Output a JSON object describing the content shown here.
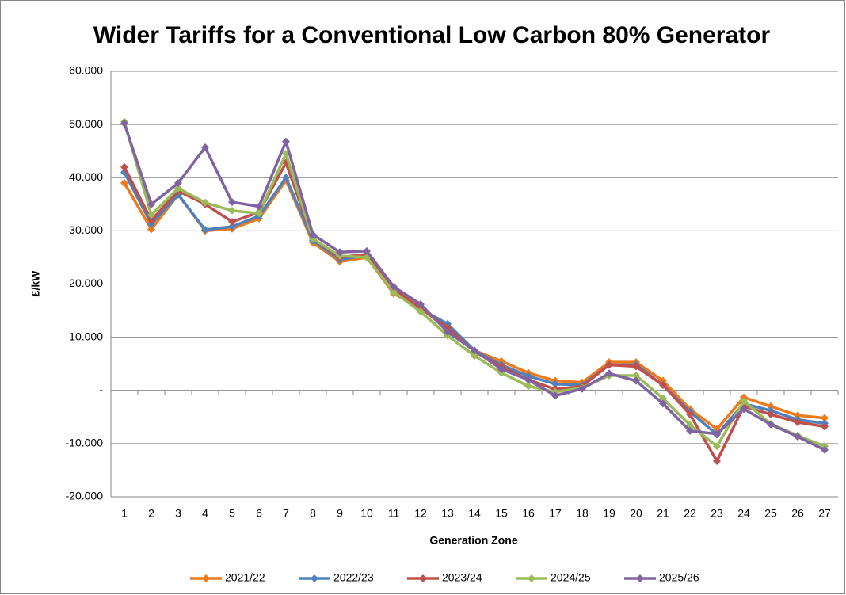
{
  "chart_data": {
    "type": "line",
    "title": "Wider Tariffs for a Conventional Low Carbon 80% Generator",
    "y_label": "£/kW",
    "x_label": "Generation Zone",
    "categories": [
      "1",
      "2",
      "3",
      "4",
      "5",
      "6",
      "7",
      "8",
      "9",
      "10",
      "11",
      "12",
      "13",
      "14",
      "15",
      "16",
      "17",
      "18",
      "19",
      "20",
      "21",
      "22",
      "23",
      "24",
      "25",
      "26",
      "27"
    ],
    "series": [
      {
        "name": "2021/22",
        "color": "#ee7a1b",
        "values": [
          39,
          30.3,
          36.8,
          30,
          30.4,
          32.3,
          39.5,
          27.8,
          24.2,
          25,
          18.2,
          15.5,
          11.5,
          7.5,
          5.5,
          3.3,
          1.8,
          1.5,
          5.3,
          5.3,
          1.8,
          -3.5,
          -7.3,
          -1.3,
          -3,
          -4.7,
          -5.2
        ]
      },
      {
        "name": "2022/23",
        "color": "#4f81bd",
        "values": [
          41,
          31.3,
          36.8,
          30.2,
          30.8,
          32.8,
          40,
          28.2,
          24.6,
          25.4,
          18.6,
          15.3,
          12.5,
          7.5,
          4.8,
          2.7,
          1.2,
          1,
          4.8,
          4.8,
          1,
          -4,
          -8.3,
          -2.5,
          -3.8,
          -5.5,
          -6.2
        ]
      },
      {
        "name": "2023/24",
        "color": "#c0504d",
        "values": [
          42,
          32,
          37.5,
          35,
          31.7,
          33.5,
          42.8,
          28.5,
          25,
          25.6,
          19,
          15.5,
          11.8,
          7.3,
          4.5,
          2,
          0.2,
          0.8,
          4.8,
          4.5,
          1,
          -4.5,
          -13.3,
          -3,
          -4.5,
          -6,
          -6.8
        ]
      },
      {
        "name": "2024/25",
        "color": "#9bbb59",
        "values": [
          50.5,
          33,
          38,
          35.3,
          33.8,
          33.3,
          44.5,
          28.5,
          25.3,
          25,
          18.5,
          14.8,
          10.3,
          6.5,
          3.3,
          0.8,
          -0.3,
          0.5,
          2.8,
          2.8,
          -1.5,
          -6.5,
          -10.5,
          -2,
          -6.3,
          -8.5,
          -10.5
        ]
      },
      {
        "name": "2025/26",
        "color": "#8064a2",
        "values": [
          50.2,
          35,
          39,
          45.7,
          35.4,
          34.6,
          46.8,
          29.3,
          26,
          26.2,
          19.5,
          16.2,
          11,
          7.5,
          4,
          2,
          -1,
          0.3,
          3.2,
          1.8,
          -2.5,
          -7.6,
          -8.2,
          -3.5,
          -6.4,
          -8.7,
          -11.2
        ]
      }
    ],
    "ylim": [
      -20,
      60
    ],
    "yticks": [
      {
        "value": -20,
        "label": "-20.000"
      },
      {
        "value": -10,
        "label": "-10.000"
      },
      {
        "value": 0,
        "label": "-"
      },
      {
        "value": 10,
        "label": "10.000"
      },
      {
        "value": 20,
        "label": "20.000"
      },
      {
        "value": 30,
        "label": "30.000"
      },
      {
        "value": 40,
        "label": "40.000"
      },
      {
        "value": 50,
        "label": "50.000"
      },
      {
        "value": 60,
        "label": "60.000"
      }
    ],
    "grid": true,
    "legend": "bottom"
  }
}
